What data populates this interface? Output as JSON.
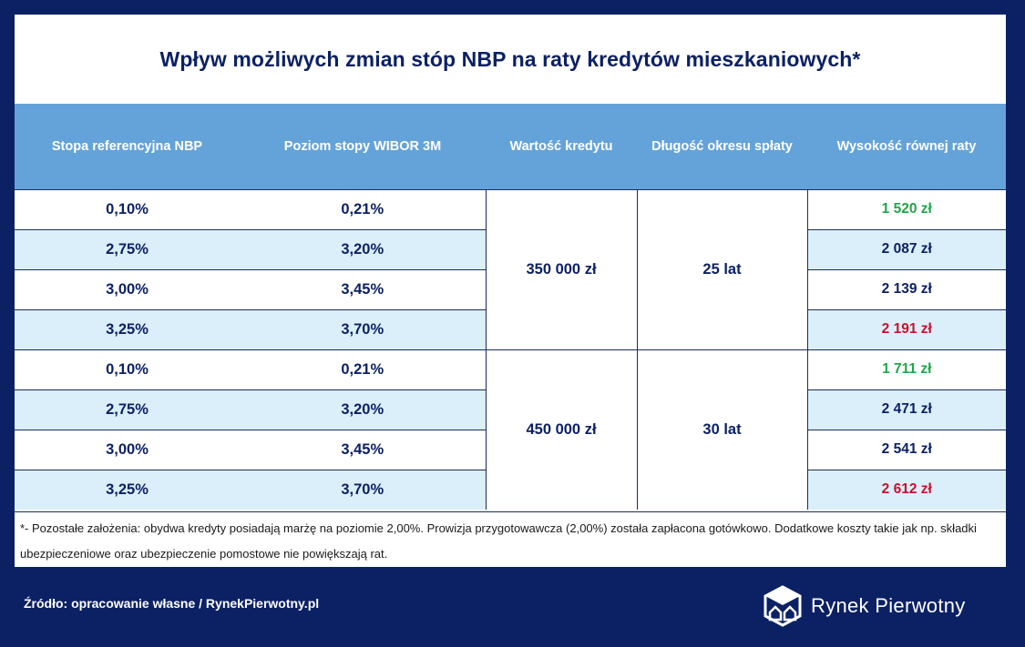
{
  "title": "Wpływ możliwych zmian stóp NBP na raty kredytów mieszkaniowych*",
  "columns": [
    "Stopa referencyjna NBP",
    "Poziom stopy WIBOR 3M",
    "Wartość kredytu",
    "Długość okresu spłaty",
    "Wysokość równej raty"
  ],
  "groups": [
    {
      "loan": "350 000 zł",
      "term": "25 lat",
      "rows": [
        {
          "nbp": "0,10%",
          "wibor": "0,21%",
          "rate": "1 520 zł",
          "highlight": "green"
        },
        {
          "nbp": "2,75%",
          "wibor": "3,20%",
          "rate": "2 087 zł",
          "highlight": ""
        },
        {
          "nbp": "3,00%",
          "wibor": "3,45%",
          "rate": "2 139 zł",
          "highlight": ""
        },
        {
          "nbp": "3,25%",
          "wibor": "3,70%",
          "rate": "2 191 zł",
          "highlight": "red"
        }
      ]
    },
    {
      "loan": "450 000 zł",
      "term": "30 lat",
      "rows": [
        {
          "nbp": "0,10%",
          "wibor": "0,21%",
          "rate": "1 711 zł",
          "highlight": "green"
        },
        {
          "nbp": "2,75%",
          "wibor": "3,20%",
          "rate": "2 471 zł",
          "highlight": ""
        },
        {
          "nbp": "3,00%",
          "wibor": "3,45%",
          "rate": "2 541 zł",
          "highlight": ""
        },
        {
          "nbp": "3,25%",
          "wibor": "3,70%",
          "rate": "2 612 zł",
          "highlight": "red"
        }
      ]
    }
  ],
  "note": "*- Pozostałe założenia: obydwa kredyty posiadają marżę na poziomie 2,00%. Prowizja przygotowawcza (2,00%) została zapłacona gotówkowo. Dodatkowe koszty takie jak np. składki ubezpieczeniowe oraz ubezpieczenie pomostowe nie powiększają rat.",
  "source": "Źródło: opracowanie własne / RynekPierwotny.pl",
  "brand": {
    "name": "Rynek Pierwotny",
    "logo_icon": "house-cube-icon"
  },
  "colors": {
    "navy": "#0c2164",
    "header_blue": "#64a3d9",
    "stripe": "#dbeffa",
    "green": "#1fa64a",
    "red": "#c8102e"
  }
}
